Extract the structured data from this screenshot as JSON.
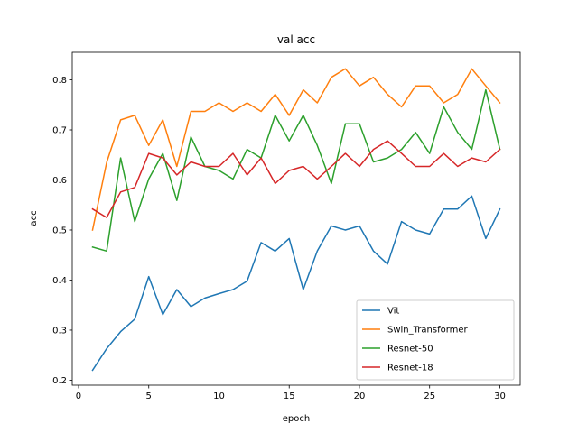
{
  "chart_data": {
    "type": "line",
    "title": "val acc",
    "xlabel": "epoch",
    "ylabel": "acc",
    "xlim": [
      -0.45,
      31.45
    ],
    "ylim": [
      0.19,
      0.855
    ],
    "xticks": [
      0,
      5,
      10,
      15,
      20,
      25,
      30
    ],
    "yticks": [
      0.2,
      0.3,
      0.4,
      0.5,
      0.6,
      0.7,
      0.8
    ],
    "ytick_labels": [
      "0.2",
      "0.3",
      "0.4",
      "0.5",
      "0.6",
      "0.7",
      "0.8"
    ],
    "grid": false,
    "legend_position": "lower-right",
    "x": [
      1,
      2,
      3,
      4,
      5,
      6,
      7,
      8,
      9,
      10,
      11,
      12,
      13,
      14,
      15,
      16,
      17,
      18,
      19,
      20,
      21,
      22,
      23,
      24,
      25,
      26,
      27,
      28,
      29,
      30
    ],
    "series": [
      {
        "name": "Vit",
        "color": "#1f77b4",
        "values": [
          0.22,
          0.263,
          0.297,
          0.322,
          0.407,
          0.331,
          0.381,
          0.347,
          0.364,
          0.373,
          0.381,
          0.398,
          0.475,
          0.458,
          0.483,
          0.381,
          0.458,
          0.508,
          0.5,
          0.508,
          0.458,
          0.432,
          0.517,
          0.5,
          0.492,
          0.542,
          0.542,
          0.568,
          0.483,
          0.542
        ]
      },
      {
        "name": "Swin_Transformer",
        "color": "#ff7f0e",
        "values": [
          0.5,
          0.635,
          0.72,
          0.729,
          0.669,
          0.72,
          0.627,
          0.737,
          0.737,
          0.754,
          0.737,
          0.754,
          0.737,
          0.771,
          0.729,
          0.78,
          0.754,
          0.805,
          0.822,
          0.788,
          0.805,
          0.771,
          0.746,
          0.788,
          0.788,
          0.754,
          0.771,
          0.822,
          0.788,
          0.754
        ]
      },
      {
        "name": "Resnet-50",
        "color": "#2ca02c",
        "values": [
          0.466,
          0.458,
          0.644,
          0.517,
          0.602,
          0.653,
          0.559,
          0.686,
          0.627,
          0.619,
          0.602,
          0.661,
          0.644,
          0.729,
          0.678,
          0.729,
          0.669,
          0.593,
          0.712,
          0.712,
          0.636,
          0.644,
          0.661,
          0.695,
          0.653,
          0.746,
          0.695,
          0.661,
          0.78,
          0.661
        ]
      },
      {
        "name": "Resnet-18",
        "color": "#d62728",
        "values": [
          0.542,
          0.525,
          0.576,
          0.585,
          0.653,
          0.644,
          0.61,
          0.636,
          0.627,
          0.627,
          0.653,
          0.61,
          0.644,
          0.593,
          0.619,
          0.627,
          0.602,
          0.627,
          0.653,
          0.627,
          0.661,
          0.678,
          0.653,
          0.627,
          0.627,
          0.653,
          0.627,
          0.644,
          0.636,
          0.661
        ]
      }
    ]
  }
}
